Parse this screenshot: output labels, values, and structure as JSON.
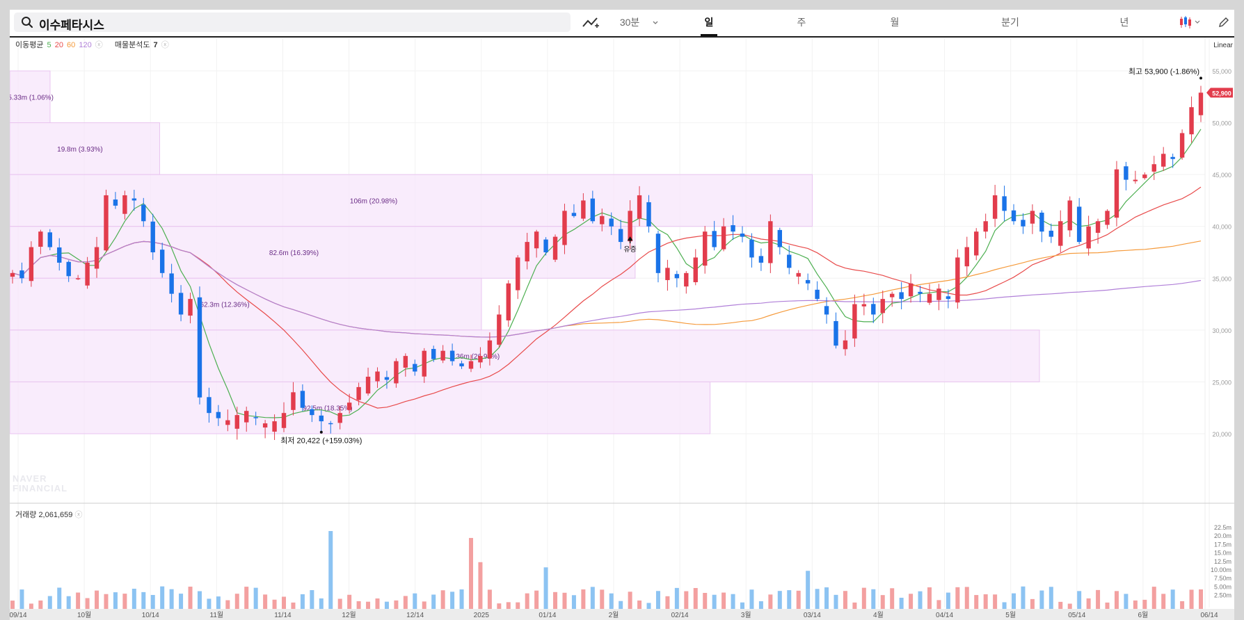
{
  "search": {
    "value": "이수페타시스",
    "icon": "search-icon"
  },
  "toolbar": {
    "draw_tool_icon": "draw-line-icon",
    "items": [
      "30분",
      "일",
      "주",
      "월",
      "분기",
      "년"
    ],
    "active": "일",
    "chart_type_icon": "candlestick-icon",
    "edit_icon": "pencil-icon"
  },
  "indicators": {
    "ma_label": "이동평균",
    "ma_periods": [
      "5",
      "20",
      "60",
      "120"
    ],
    "ma_colors": [
      "#4caf50",
      "#e84a4a",
      "#f59a3b",
      "#b07fd8"
    ],
    "volume_profile_label": "매물분석도",
    "volume_profile_value": "7"
  },
  "scale": {
    "label": "Linear"
  },
  "last_price": "52,900",
  "high": {
    "label": "최고",
    "value": "53,900",
    "change": "(-1.86%)"
  },
  "low": {
    "label": "최저",
    "value": "20,422",
    "change": "(+159.03%)"
  },
  "event": {
    "label": "유증"
  },
  "volume": {
    "label": "거래량",
    "value": "2,061,659"
  },
  "watermark": [
    "NAVER",
    "FINANCIAL"
  ],
  "colors": {
    "up": "#e23c4c",
    "down": "#1a73e8",
    "up_vol": "#f3a0a0",
    "down_vol": "#8cc3f2",
    "profile": "#f7e6fb",
    "profile_border": "#e9c5f0"
  },
  "chart_data": {
    "type": "candlestick",
    "y_ticks": [
      "55,000",
      "50,000",
      "45,000",
      "40,000",
      "35,000",
      "30,000",
      "25,000",
      "20,000"
    ],
    "vol_ticks": [
      "22.5m",
      "20.0m",
      "17.5m",
      "15.0m",
      "12.5m",
      "10.00m",
      "7.50m",
      "5.00m",
      "2.50m"
    ],
    "x_ticks": [
      "09/14",
      "10월",
      "10/14",
      "11월",
      "11/14",
      "12월",
      "12/14",
      "2025",
      "01/14",
      "2월",
      "02/14",
      "3월",
      "03/14",
      "4월",
      "04/14",
      "5월",
      "05/14",
      "6월",
      "06/14"
    ],
    "volume_profile": [
      {
        "label": "5.33m (1.06%)",
        "price_low": 50000,
        "price_high": 55000,
        "volume_m": 5.33
      },
      {
        "label": "19.8m (3.93%)",
        "price_low": 45000,
        "price_high": 50000,
        "volume_m": 19.8
      },
      {
        "label": "106m (20.98%)",
        "price_low": 40000,
        "price_high": 45000,
        "volume_m": 106
      },
      {
        "label": "82.6m (16.39%)",
        "price_low": 35000,
        "price_high": 40000,
        "volume_m": 82.6
      },
      {
        "label": "62.3m (12.36%)",
        "price_low": 30000,
        "price_high": 35000,
        "volume_m": 62.3
      },
      {
        "label": "136m (26.92%)",
        "price_low": 25000,
        "price_high": 30000,
        "volume_m": 136
      },
      {
        "label": "92.5m (18.35%)",
        "price_low": 20000,
        "price_high": 25000,
        "volume_m": 92.5
      }
    ],
    "closes": [
      35500,
      35000,
      38000,
      39500,
      38000,
      36500,
      35200,
      35000,
      36500,
      38000,
      43000,
      42000,
      43000,
      42500,
      40500,
      37500,
      35500,
      33500,
      31500,
      33000,
      23500,
      22000,
      21500,
      21300,
      21800,
      22200,
      21500,
      21000,
      21200,
      22000,
      24000,
      22500,
      21800,
      21200,
      21000,
      22000,
      23000,
      24500,
      25500,
      26000,
      25200,
      27000,
      27500,
      26000,
      28000,
      27200,
      28000,
      27000,
      26500,
      27000,
      27500,
      29000,
      31500,
      34500,
      37000,
      38500,
      39500,
      37500,
      39000,
      41500,
      41000,
      42500,
      40500,
      41000,
      40000,
      38500,
      41500,
      43000,
      40000,
      35500,
      36000,
      35000,
      35500,
      37000,
      39500,
      38000,
      40000,
      39500,
      39000,
      37000,
      36500,
      40500,
      38000,
      36000,
      35500,
      34500,
      33000,
      31500,
      28500,
      29000,
      32500,
      32500,
      31500,
      33000,
      33500,
      33000,
      34500,
      33500,
      33500,
      34000,
      33000,
      37000,
      38000,
      39500,
      40500,
      43000,
      41500,
      40500,
      40000,
      41500,
      39500,
      39000,
      40500,
      42500,
      38500,
      40000,
      40500,
      41500,
      45500,
      44500,
      44500,
      45000,
      46000,
      47000,
      46500,
      49000,
      51500,
      52900
    ],
    "ma_series": [
      "MA5",
      "MA20",
      "MA60",
      "MA120"
    ]
  }
}
